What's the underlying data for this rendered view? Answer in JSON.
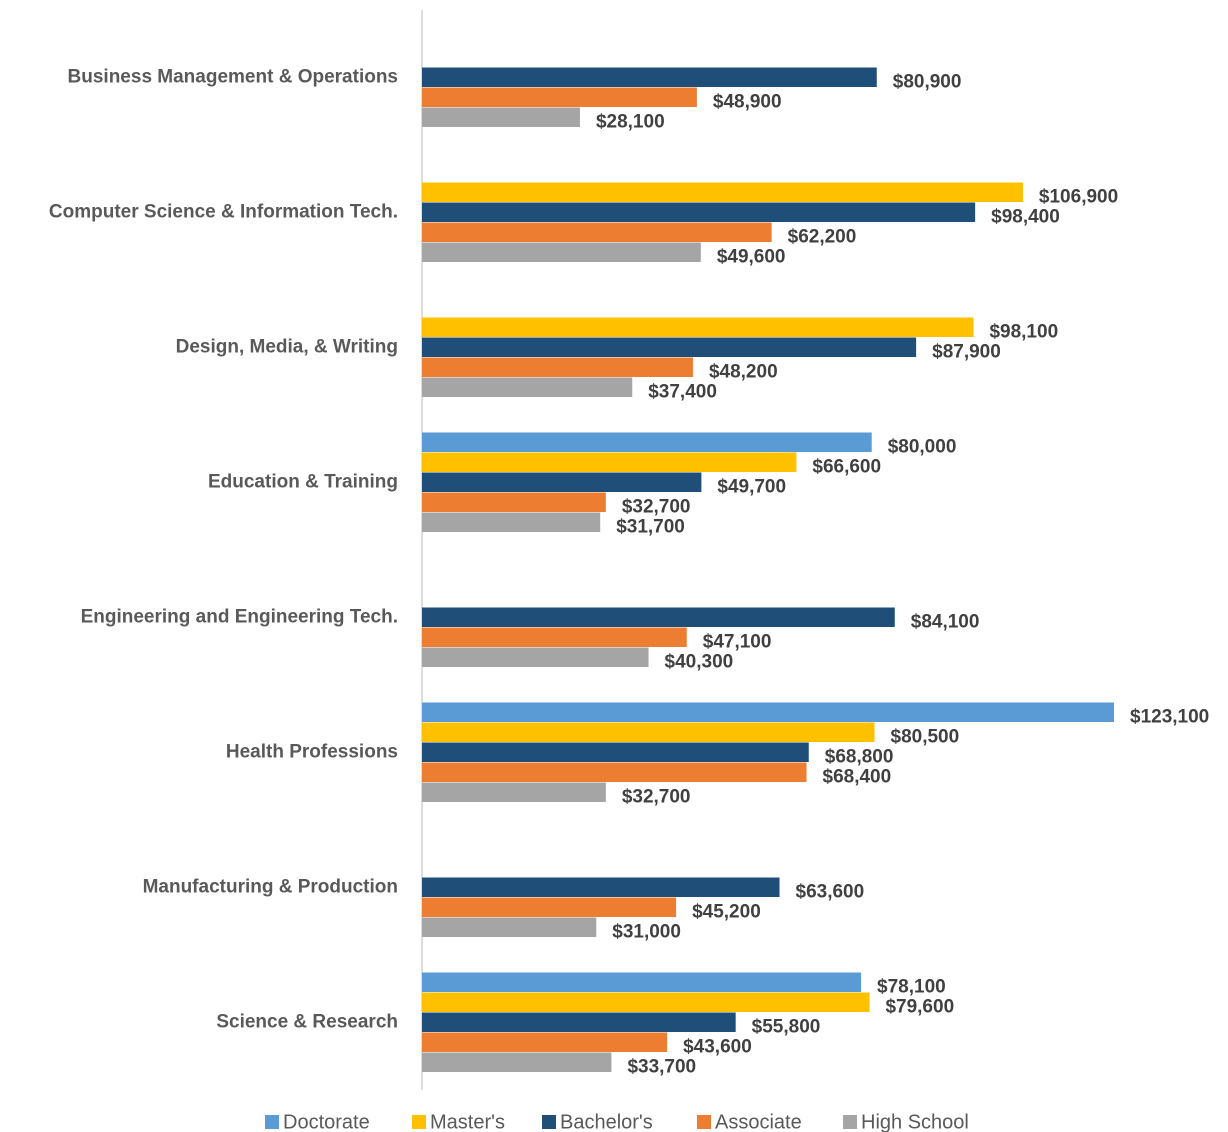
{
  "chart_data": {
    "type": "hbar",
    "categories": [
      "Business Management & Operations",
      "Computer Science & Information Tech.",
      "Design, Media, & Writing",
      "Education & Training",
      "Engineering and Engineering Tech.",
      "Health Professions",
      "Manufacturing & Production",
      "Science & Research"
    ],
    "series": [
      {
        "name": "Doctorate",
        "color": "#5b9bd5",
        "values": [
          null,
          null,
          null,
          80000,
          null,
          123100,
          null,
          78100
        ],
        "value_labels": [
          null,
          null,
          null,
          "$80,000",
          null,
          "$123,100",
          null,
          "$78,100"
        ]
      },
      {
        "name": "Master's",
        "color": "#ffc000",
        "values": [
          null,
          106900,
          98100,
          66600,
          null,
          80500,
          null,
          79600
        ],
        "value_labels": [
          null,
          "$106,900",
          "$98,100",
          "$66,600",
          null,
          "$80,500",
          null,
          "$79,600"
        ]
      },
      {
        "name": "Bachelor's",
        "color": "#1f4e79",
        "values": [
          80900,
          98400,
          87900,
          49700,
          84100,
          68800,
          63600,
          55800
        ],
        "value_labels": [
          "$80,900",
          "$98,400",
          "$87,900",
          "$49,700",
          "$84,100",
          "$68,800",
          "$63,600",
          "$55,800"
        ]
      },
      {
        "name": "Associate",
        "color": "#ed7d31",
        "values": [
          48900,
          62200,
          48200,
          32700,
          47100,
          68400,
          45200,
          43600
        ],
        "value_labels": [
          "$48,900",
          "$62,200",
          "$48,200",
          "$32,700",
          "$47,100",
          "$68,400",
          "$45,200",
          "$43,600"
        ]
      },
      {
        "name": "High School",
        "color": "#a5a5a5",
        "values": [
          28100,
          49600,
          37400,
          31700,
          40300,
          32700,
          31000,
          33700
        ],
        "value_labels": [
          "$28,100",
          "$49,600",
          "$37,400",
          "$31,700",
          "$40,300",
          "$32,700",
          "$31,000",
          "$33,700"
        ]
      }
    ],
    "legend": "bottom"
  }
}
